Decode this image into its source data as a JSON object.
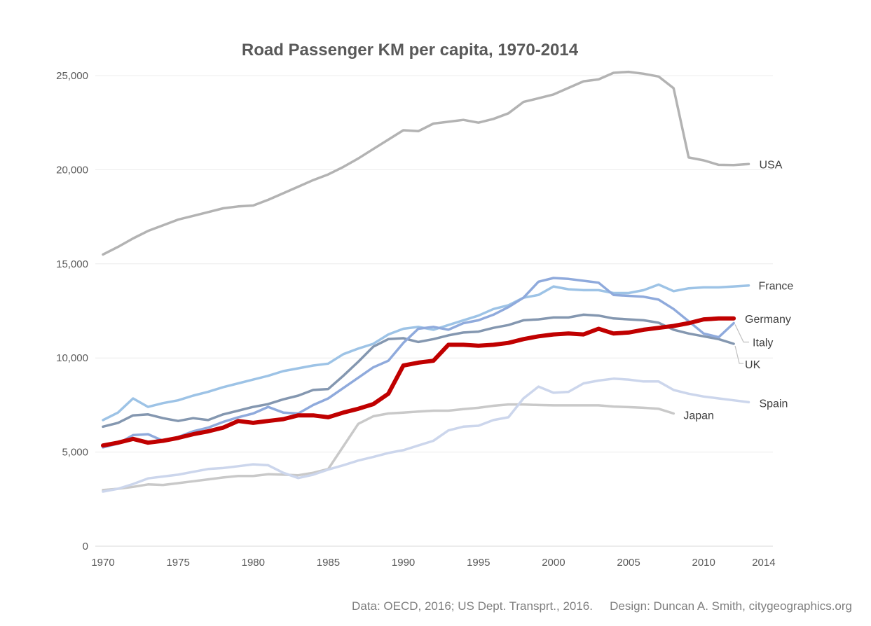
{
  "title": "Road Passenger KM per capita, 1970-2014",
  "chart_data": {
    "type": "line",
    "title": "Road Passenger KM per capita, 1970-2014",
    "xlabel": "",
    "ylabel": "",
    "x_range": [
      1970,
      2014
    ],
    "ylim": [
      0,
      25000
    ],
    "grid": "horizontal",
    "legend_position": "line-end-labels",
    "y_ticks": [
      {
        "value": 0,
        "label": "0"
      },
      {
        "value": 5000,
        "label": "5,000"
      },
      {
        "value": 10000,
        "label": "10,000"
      },
      {
        "value": 15000,
        "label": "15,000"
      },
      {
        "value": 20000,
        "label": "20,000"
      },
      {
        "value": 25000,
        "label": "25,000"
      }
    ],
    "x_ticks": [
      {
        "year": 1970,
        "label": "1970"
      },
      {
        "year": 1975,
        "label": "1975"
      },
      {
        "year": 1980,
        "label": "1980"
      },
      {
        "year": 1985,
        "label": "1985"
      },
      {
        "year": 1990,
        "label": "1990"
      },
      {
        "year": 1995,
        "label": "1995"
      },
      {
        "year": 2000,
        "label": "2000"
      },
      {
        "year": 2005,
        "label": "2005"
      },
      {
        "year": 2010,
        "label": "2010"
      },
      {
        "year": 2014,
        "label": "2014"
      }
    ],
    "series": [
      {
        "name": "USA",
        "color": "#b3b3b3",
        "emphasis": false,
        "start_year": 1970,
        "values": [
          15500,
          15900,
          16350,
          16750,
          17050,
          17350,
          17550,
          17750,
          17950,
          18050,
          18100,
          18400,
          18750,
          19100,
          19450,
          19750,
          20150,
          20600,
          21100,
          21600,
          22100,
          22050,
          22450,
          22550,
          22650,
          22500,
          22700,
          23000,
          23600,
          23800,
          24000,
          24350,
          24700,
          24800,
          25150,
          25200,
          25100,
          24950,
          24330,
          20650,
          20500,
          20260,
          20250,
          20300
        ]
      },
      {
        "name": "Japan",
        "color": "#c9c9c9",
        "emphasis": false,
        "start_year": 1970,
        "values": [
          2980,
          3050,
          3150,
          3280,
          3250,
          3350,
          3450,
          3550,
          3650,
          3730,
          3730,
          3820,
          3800,
          3770,
          3900,
          4100,
          5300,
          6500,
          6900,
          7050,
          7100,
          7150,
          7200,
          7200,
          7280,
          7350,
          7460,
          7530,
          7530,
          7500,
          7480,
          7480,
          7480,
          7480,
          7420,
          7390,
          7350,
          7300,
          7050
        ]
      },
      {
        "name": "Spain",
        "color": "#ccd6ec",
        "emphasis": false,
        "start_year": 1970,
        "values": [
          2900,
          3050,
          3300,
          3600,
          3700,
          3800,
          3950,
          4100,
          4150,
          4250,
          4350,
          4300,
          3900,
          3620,
          3800,
          4070,
          4300,
          4550,
          4740,
          4950,
          5100,
          5350,
          5600,
          6150,
          6350,
          6400,
          6700,
          6850,
          7850,
          8480,
          8150,
          8200,
          8650,
          8800,
          8900,
          8850,
          8750,
          8750,
          8300,
          8100,
          7950,
          7850,
          7750,
          7650
        ]
      },
      {
        "name": "France",
        "color": "#9dc3e6",
        "emphasis": false,
        "start_year": 1970,
        "values": [
          6700,
          7100,
          7850,
          7400,
          7600,
          7750,
          8000,
          8200,
          8450,
          8650,
          8850,
          9050,
          9300,
          9450,
          9600,
          9700,
          10200,
          10500,
          10750,
          11250,
          11550,
          11650,
          11500,
          11750,
          12000,
          12250,
          12600,
          12800,
          13200,
          13350,
          13800,
          13650,
          13600,
          13600,
          13450,
          13450,
          13600,
          13900,
          13550,
          13700,
          13750,
          13750,
          13800,
          13850
        ]
      },
      {
        "name": "UK",
        "color": "#8497b0",
        "emphasis": false,
        "start_year": 1970,
        "values": [
          6350,
          6550,
          6950,
          7000,
          6800,
          6650,
          6800,
          6700,
          7000,
          7200,
          7400,
          7550,
          7800,
          8000,
          8300,
          8350,
          9050,
          9800,
          10600,
          11000,
          11050,
          10850,
          11000,
          11200,
          11350,
          11400,
          11600,
          11750,
          12000,
          12050,
          12150,
          12150,
          12300,
          12250,
          12100,
          12050,
          12000,
          11870,
          11500,
          11300,
          11150,
          11000,
          10750
        ]
      },
      {
        "name": "Italy",
        "color": "#8faadc",
        "emphasis": false,
        "start_year": 1970,
        "values": [
          5250,
          5450,
          5900,
          5950,
          5600,
          5800,
          6100,
          6300,
          6600,
          6850,
          7050,
          7400,
          7100,
          7050,
          7500,
          7850,
          8400,
          8950,
          9500,
          9850,
          10800,
          11550,
          11650,
          11500,
          11850,
          12000,
          12300,
          12700,
          13200,
          14050,
          14250,
          14200,
          14100,
          14000,
          13350,
          13300,
          13250,
          13100,
          12600,
          11950,
          11300,
          11100,
          11850
        ]
      },
      {
        "name": "Germany",
        "color": "#c00000",
        "emphasis": true,
        "start_year": 1970,
        "values": [
          5350,
          5500,
          5700,
          5500,
          5600,
          5750,
          5950,
          6100,
          6300,
          6650,
          6550,
          6650,
          6750,
          6950,
          6950,
          6850,
          7100,
          7300,
          7550,
          8100,
          9600,
          9750,
          9850,
          10700,
          10700,
          10650,
          10700,
          10800,
          11000,
          11150,
          11250,
          11300,
          11250,
          11550,
          11300,
          11350,
          11500,
          11600,
          11700,
          11850,
          12050,
          12100,
          12100
        ]
      }
    ]
  },
  "footer": {
    "data_credit": "Data: OECD, 2016; US Dept. Transprt., 2016.",
    "design_credit": "Design: Duncan A. Smith, citygeographics.org"
  },
  "colors": {
    "background": "#ffffff",
    "title": "#595959",
    "tick_label": "#595959",
    "series_label": "#3f3f3f",
    "gridline": "#ececec",
    "baseline": "#d9d9d9",
    "leader_line": "#bfbfbf"
  }
}
